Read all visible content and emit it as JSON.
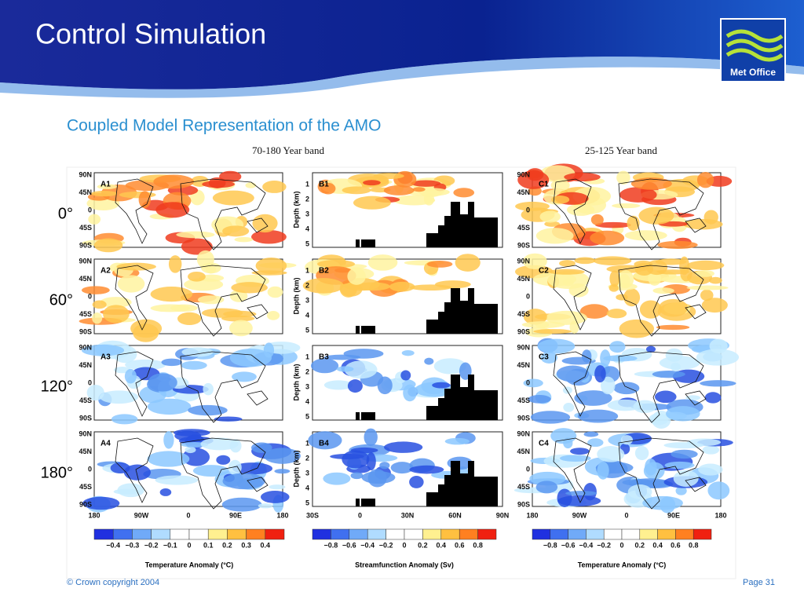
{
  "header": {
    "title": "Control Simulation",
    "logo": "Met Office"
  },
  "subtitle": "Coupled Model Representation of the AMO",
  "columns": [
    "70-180 Year band",
    "25-125 Year band"
  ],
  "rows": [
    "0°",
    "60°",
    "120°",
    "180°"
  ],
  "panels": {
    "a": [
      "A1",
      "A2",
      "A3",
      "A4"
    ],
    "b": [
      "B1",
      "B2",
      "B3",
      "B4"
    ],
    "c": [
      "C1",
      "C2",
      "C3",
      "C4"
    ]
  },
  "lat_ticks": [
    "90N",
    "45N",
    "0",
    "45S",
    "90S"
  ],
  "lon_ticks": [
    "180",
    "90W",
    "0",
    "90E",
    "180"
  ],
  "depth_label": "Depth (km)",
  "depth_ticks": [
    "1",
    "2",
    "3",
    "4",
    "5"
  ],
  "section_ticks": [
    "30S",
    "0",
    "30N",
    "60N",
    "90N"
  ],
  "colorbars": [
    {
      "ticks": [
        "−0.4",
        "−0.3",
        "−0.2",
        "−0.1",
        "0",
        "0.1",
        "0.2",
        "0.3",
        "0.4"
      ],
      "label": "Temperature Anomaly (°C)"
    },
    {
      "ticks": [
        "−0.8",
        "−0.6",
        "−0.4",
        "−0.2",
        "0",
        "0.2",
        "0.4",
        "0.6",
        "0.8"
      ],
      "label": "Streamfunction Anomaly (Sv)"
    },
    {
      "ticks": [
        "−0.8",
        "−0.6",
        "−0.4",
        "−0.2",
        "0",
        "0.2",
        "0.4",
        "0.6",
        "0.8"
      ],
      "label": "Temperature Anomaly (°C)"
    }
  ],
  "footer": {
    "copyright": "© Crown copyright 2004",
    "page": "Page 31"
  }
}
